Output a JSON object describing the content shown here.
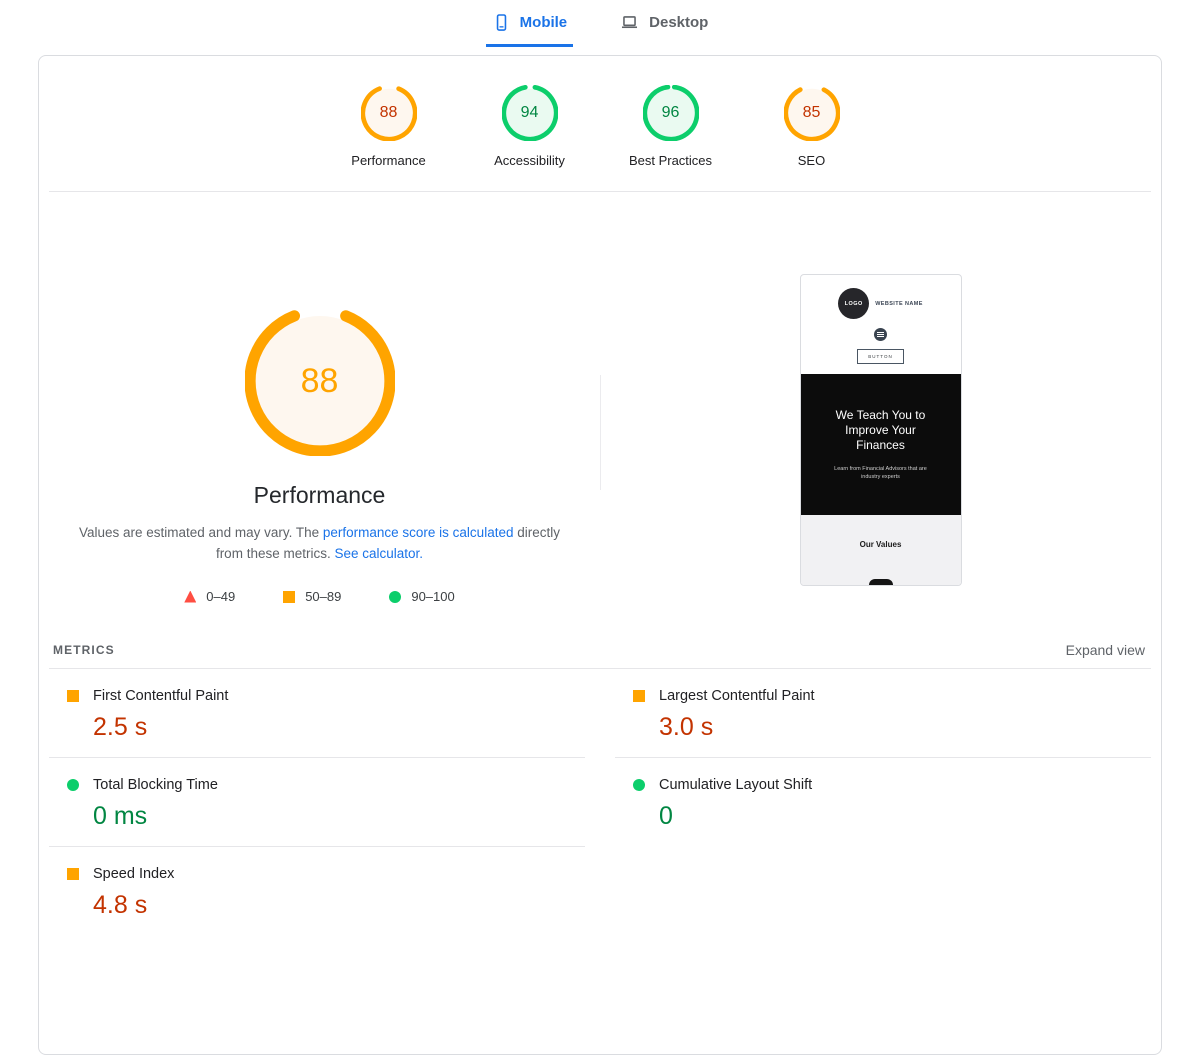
{
  "colors": {
    "accent_blue": "#1a73e8",
    "pass_green_ring": "#0cce6b",
    "pass_green_text": "#018642",
    "pass_green_fill": "#eafaf1",
    "average_orange_ring": "#ffa400",
    "average_orange_text": "#c33300",
    "average_orange_fill": "#fef7ef",
    "fail_red": "#ff4e42"
  },
  "device_tabs": {
    "mobile": "Mobile",
    "desktop": "Desktop"
  },
  "scores_header": [
    {
      "score": 88,
      "label": "Performance",
      "ring": "#ffa400",
      "fill": "#fef7ef",
      "text": "#c33300"
    },
    {
      "score": 94,
      "label": "Accessibility",
      "ring": "#0cce6b",
      "fill": "#eafaf1",
      "text": "#018642"
    },
    {
      "score": 96,
      "label": "Best Practices",
      "ring": "#0cce6b",
      "fill": "#eafaf1",
      "text": "#018642"
    },
    {
      "score": 85,
      "label": "SEO",
      "ring": "#ffa400",
      "fill": "#fef7ef",
      "text": "#c33300"
    }
  ],
  "performance_panel": {
    "score": 88,
    "ring": "#ffa400",
    "fill": "#fef7ef",
    "score_color": "#ffa400",
    "title": "Performance",
    "note_text_1": "Values are estimated and may vary. The",
    "note_link_1": "performance score is calculated",
    "note_text_2": "directly from these metrics.",
    "note_link_2": "See calculator.",
    "legend": [
      {
        "shape": "triangle",
        "color": "#ff4e42",
        "label": "0–49"
      },
      {
        "shape": "square",
        "color": "#ffa400",
        "label": "50–89"
      },
      {
        "shape": "circle",
        "color": "#0cce6b",
        "label": "90–100"
      }
    ]
  },
  "preview": {
    "logo_text": "LOGO",
    "site_name": "WEBSITE NAME",
    "button_label": "BUTTON",
    "hero_title": "We Teach You to Improve Your Finances",
    "hero_subtitle": "Learn from Financial Advisors that are industry experts",
    "section_title": "Our Values"
  },
  "metrics": {
    "heading": "METRICS",
    "expand_label": "Expand view",
    "items": [
      {
        "name": "First Contentful Paint",
        "value": "2.5 s",
        "icon_shape": "square",
        "icon_color": "#ffa400",
        "value_color": "#c33300"
      },
      {
        "name": "Largest Contentful Paint",
        "value": "3.0 s",
        "icon_shape": "square",
        "icon_color": "#ffa400",
        "value_color": "#c33300"
      },
      {
        "name": "Total Blocking Time",
        "value": "0 ms",
        "icon_shape": "circle",
        "icon_color": "#0cce6b",
        "value_color": "#018642"
      },
      {
        "name": "Cumulative Layout Shift",
        "value": "0",
        "icon_shape": "circle",
        "icon_color": "#0cce6b",
        "value_color": "#018642"
      },
      {
        "name": "Speed Index",
        "value": "4.8 s",
        "icon_shape": "square",
        "icon_color": "#ffa400",
        "value_color": "#c33300"
      }
    ]
  }
}
